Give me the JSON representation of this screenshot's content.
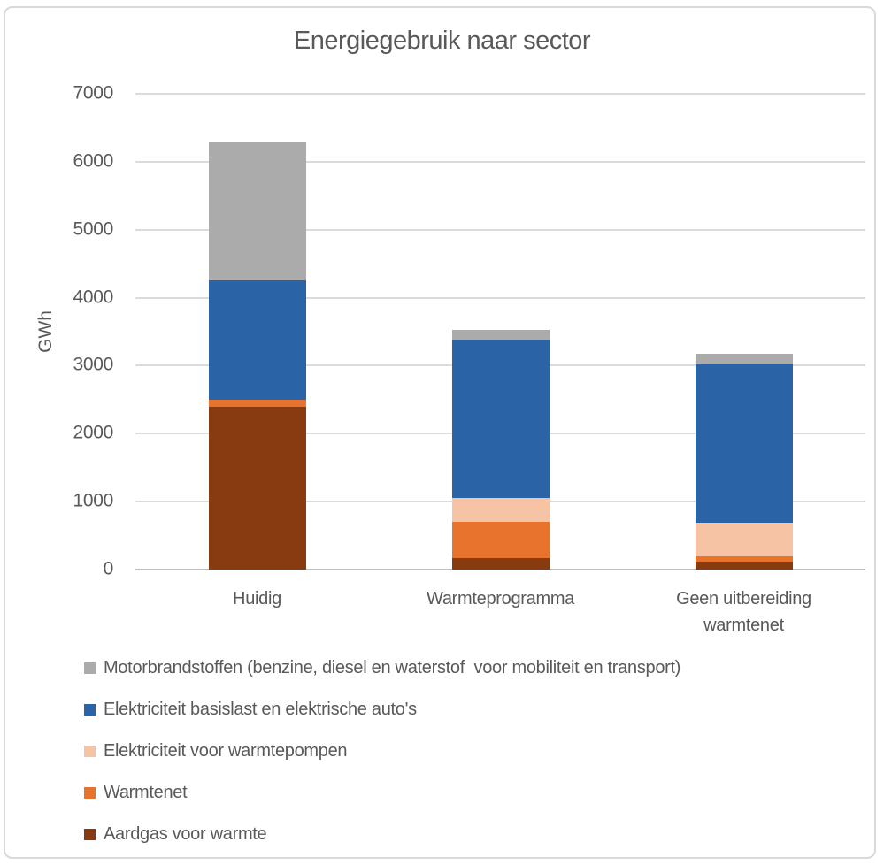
{
  "chart_data": {
    "type": "bar",
    "stacked": true,
    "title": "Energiegebruik naar sector",
    "xlabel": "",
    "ylabel": "GWh",
    "ylim": [
      0,
      7000
    ],
    "ytick_step": 1000,
    "grid": true,
    "legend_position": "bottom-left",
    "categories": [
      "Huidig",
      "Warmteprogramma",
      "Geen uitbereiding warmtenet"
    ],
    "series": [
      {
        "name": "Aardgas voor warmte",
        "color": "#883A10",
        "values": [
          2400,
          175,
          120
        ]
      },
      {
        "name": "Warmtenet",
        "color": "#E8732C",
        "values": [
          100,
          525,
          75
        ]
      },
      {
        "name": "Elektriciteit voor warmtepompen",
        "color": "#F6C3A5",
        "values": [
          0,
          350,
          495
        ]
      },
      {
        "name": "Elektriciteit basislast en elektrische auto's",
        "color": "#2A64A6",
        "values": [
          1750,
          2335,
          2335
        ]
      },
      {
        "name": "Motorbrandstoffen (benzine, diesel en waterstof  voor mobiliteit en transport)",
        "color": "#ABABAB",
        "values": [
          2050,
          140,
          155
        ]
      }
    ],
    "totals": [
      6300,
      3525,
      3180
    ],
    "ytick_labels": [
      "0",
      "1000",
      "2000",
      "3000",
      "4000",
      "5000",
      "6000",
      "7000"
    ]
  },
  "colors": {
    "text": "#595959",
    "gridline": "#DBDBDB",
    "axis_line": "#BFBFBF",
    "frame_border": "#D9D9D9",
    "background": "#FFFFFF"
  }
}
